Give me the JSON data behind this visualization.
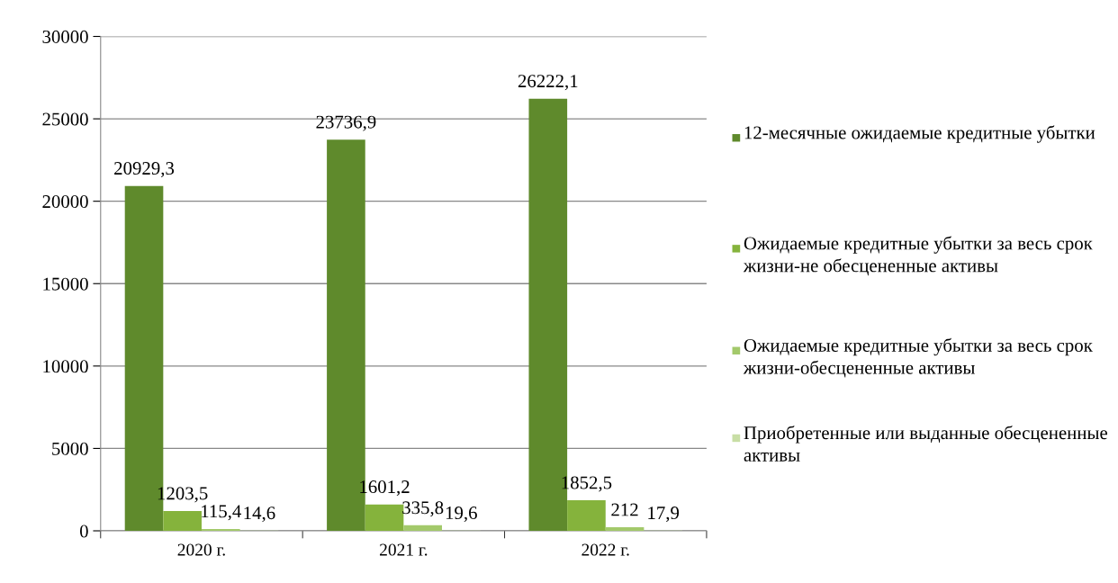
{
  "chart_data": {
    "type": "bar",
    "categories": [
      "2020 г.",
      "2021 г.",
      "2022 г."
    ],
    "series": [
      {
        "name": "12-месячные ожидаемые кредитные убытки",
        "color": "#5f8a2c",
        "values": [
          20929.3,
          23736.9,
          26222.1
        ],
        "value_labels": [
          "20929,3",
          "23736,9",
          "26222,1"
        ]
      },
      {
        "name": "Ожидаемые кредитные убытки за весь срок жизни-не обесцененные активы",
        "color": "#85b33c",
        "values": [
          1203.5,
          1601.2,
          1852.5
        ],
        "value_labels": [
          "1203,5",
          "1601,2",
          "1852,5"
        ]
      },
      {
        "name": "Ожидаемые кредитные убытки за весь срок жизни-обесцененные активы",
        "color": "#a3c96b",
        "values": [
          115.4,
          335.8,
          212
        ],
        "value_labels": [
          "115,4",
          "335,8",
          "212"
        ]
      },
      {
        "name": "Приобретенные или выданные обесцененные активы",
        "color": "#c8dea5",
        "values": [
          14.6,
          19.6,
          17.9
        ],
        "value_labels": [
          "14,6",
          "19,6",
          "17,9"
        ]
      }
    ],
    "ylim": [
      0,
      30000
    ],
    "yticks": [
      0,
      5000,
      10000,
      15000,
      20000,
      25000,
      30000
    ],
    "grid": "y",
    "legend": "right"
  }
}
